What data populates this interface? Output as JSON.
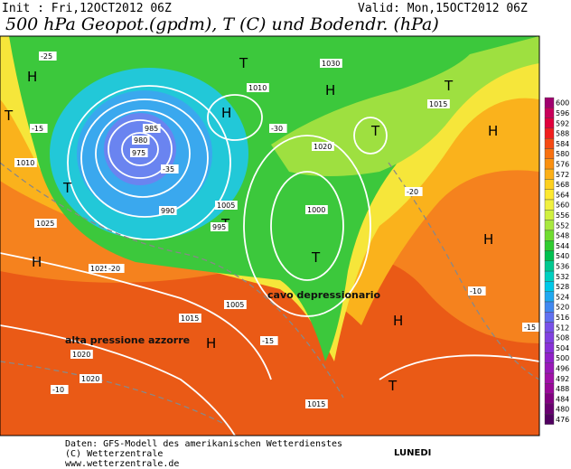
{
  "header": {
    "init": "Init : Fri,12OCT2012 06Z",
    "valid": "Valid: Mon,15OCT2012 06Z",
    "title": "500 hPa Geopot.(gpdm), T (C) und Bodendr. (hPa)"
  },
  "legend": {
    "values": [
      600,
      596,
      592,
      588,
      584,
      580,
      576,
      572,
      568,
      564,
      560,
      556,
      552,
      548,
      544,
      540,
      536,
      532,
      528,
      524,
      520,
      516,
      512,
      508,
      504,
      500,
      496,
      492,
      488,
      484,
      480,
      476
    ],
    "colors": [
      "#a0006e",
      "#c8005a",
      "#e0003c",
      "#f01e1e",
      "#f54a14",
      "#f87010",
      "#fa9010",
      "#fcb018",
      "#fdd020",
      "#fde830",
      "#f0f040",
      "#d0f040",
      "#a8e840",
      "#70dc30",
      "#30cc30",
      "#00c050",
      "#00c890",
      "#00d0c0",
      "#00c8e8",
      "#20a8f0",
      "#4088f0",
      "#6070f0",
      "#7850e8",
      "#8040e0",
      "#8830d8",
      "#9020c8",
      "#9818b8",
      "#a010a8",
      "#980898",
      "#800080",
      "#680070",
      "#500060"
    ]
  },
  "map": {
    "annotations": [
      "cavo depressionario",
      "alta pressione azzorre"
    ],
    "labels": [
      "H",
      "H",
      "H",
      "H",
      "H",
      "H",
      "H",
      "H",
      "T",
      "T",
      "T",
      "T",
      "T",
      "T",
      "T",
      "T",
      "1025",
      "1020",
      "1015",
      "1010",
      "1005",
      "1000",
      "995",
      "990",
      "985",
      "980",
      "975",
      "1030",
      "1015",
      "1020",
      "1010",
      "1005",
      "1025",
      "1020",
      "1015",
      "-25",
      "-20",
      "-15",
      "-10",
      "-15",
      "-20",
      "-30",
      "-35",
      "-10",
      "-15"
    ]
  },
  "footer": {
    "lines": [
      "Daten: GFS-Modell des amerikanischen Wetterdienstes",
      "(C) Wetterzentrale",
      "www.wetterzentrale.de"
    ],
    "day": "LUNEDI"
  }
}
